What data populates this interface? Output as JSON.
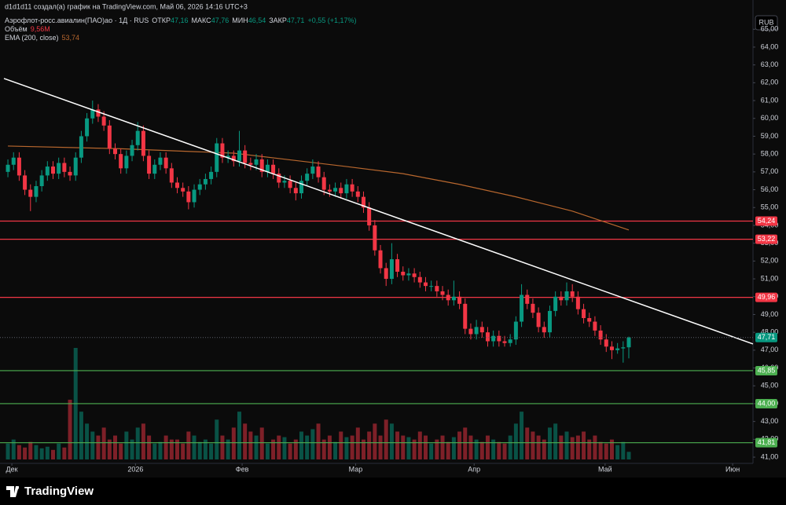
{
  "header": {
    "credit": "d1d1d11 создал(а) график на TradingView.com, Май 06, 2026 14:16 UTC+3",
    "symbol": "Аэрофлот-росс.авиалин(ПАО)ао · 1Д · RUS",
    "ohlc": [
      {
        "label": "ОТКР",
        "value": "47,16"
      },
      {
        "label": "МАКС",
        "value": "47,76"
      },
      {
        "label": "МИН",
        "value": "46,54"
      },
      {
        "label": "ЗАКР",
        "value": "47,71"
      }
    ],
    "change": "+0,55 (+1,17%)",
    "volume_label": "Объём",
    "volume_value": "9,56M",
    "ema_label": "EMA (200, close)",
    "ema_value": "53,74",
    "currency": "RUB",
    "brand": "TradingView"
  },
  "chart_data": {
    "type": "candlestick",
    "up_color": "#089981",
    "down_color": "#f23645",
    "xlim": [
      -1.4,
      132
    ],
    "ylim": [
      40.65,
      65.76
    ],
    "grid": false,
    "xticks": [
      {
        "value": 0.7,
        "label": "Дек"
      },
      {
        "value": 22.6,
        "label": "2026"
      },
      {
        "value": 41.5,
        "label": "Фев"
      },
      {
        "value": 61.6,
        "label": "Мар"
      },
      {
        "value": 82.6,
        "label": "Апр"
      },
      {
        "value": 105.8,
        "label": "Май"
      },
      {
        "value": 128.4,
        "label": "Июн"
      }
    ],
    "yticks": [
      {
        "value": 41,
        "label": "41,00"
      },
      {
        "value": 42,
        "label": "42,00"
      },
      {
        "value": 43,
        "label": "43,00"
      },
      {
        "value": 44,
        "label": "44,00"
      },
      {
        "value": 45,
        "label": "45,00"
      },
      {
        "value": 46,
        "label": "46,00"
      },
      {
        "value": 47,
        "label": "47,00"
      },
      {
        "value": 48,
        "label": "48,00"
      },
      {
        "value": 49,
        "label": "49,00"
      },
      {
        "value": 50,
        "label": "50,00"
      },
      {
        "value": 51,
        "label": "51,00"
      },
      {
        "value": 52,
        "label": "52,00"
      },
      {
        "value": 53,
        "label": "53,00"
      },
      {
        "value": 54,
        "label": "54,00"
      },
      {
        "value": 55,
        "label": "55,00"
      },
      {
        "value": 56,
        "label": "56,00"
      },
      {
        "value": 57,
        "label": "57,00"
      },
      {
        "value": 58,
        "label": "58,00"
      },
      {
        "value": 59,
        "label": "59,00"
      },
      {
        "value": 60,
        "label": "60,00"
      },
      {
        "value": 61,
        "label": "61,00"
      },
      {
        "value": 62,
        "label": "62,00"
      },
      {
        "value": 63,
        "label": "63,00"
      },
      {
        "value": 64,
        "label": "64,00"
      },
      {
        "value": 65,
        "label": "65,00"
      }
    ],
    "open": [
      57.0,
      57.4,
      57.8,
      56.8,
      56.0,
      55.6,
      56.2,
      56.8,
      57.3,
      56.9,
      57.5,
      57.0,
      56.8,
      57.8,
      59.0,
      60.0,
      60.5,
      60.1,
      59.6,
      58.3,
      58.0,
      57.2,
      57.9,
      58.5,
      59.3,
      57.9,
      56.9,
      57.4,
      57.8,
      57.2,
      56.4,
      56.1,
      55.9,
      55.3,
      56.0,
      56.3,
      56.6,
      57.0,
      58.6,
      57.8,
      57.9,
      57.6,
      58.2,
      57.5,
      57.4,
      57.7,
      57.0,
      57.4,
      56.9,
      56.4,
      56.5,
      56.1,
      55.8,
      56.5,
      56.9,
      57.3,
      56.7,
      56.0,
      55.9,
      56.1,
      55.8,
      56.3,
      55.9,
      55.6,
      55.0,
      54.0,
      52.6,
      51.6,
      51.0,
      52.1,
      51.4,
      51.2,
      51.3,
      51.1,
      50.8,
      50.6,
      50.6,
      50.3,
      50.1,
      49.8,
      50.0,
      49.6,
      48.2,
      47.9,
      48.3,
      48.0,
      47.5,
      47.8,
      47.5,
      47.4,
      47.6,
      48.6,
      50.1,
      49.6,
      49.1,
      48.3,
      48.0,
      49.2,
      50.0,
      49.8,
      50.3,
      50.0,
      49.3,
      48.8,
      48.6,
      48.1,
      47.6,
      47.2,
      47.0,
      47.1,
      47.16
    ],
    "high": [
      57.7,
      58.1,
      58.1,
      57.1,
      56.3,
      56.5,
      57.1,
      57.6,
      57.6,
      57.8,
      57.8,
      57.3,
      58.1,
      59.3,
      60.3,
      61.0,
      60.8,
      60.4,
      59.9,
      58.6,
      58.3,
      58.2,
      58.8,
      59.8,
      59.6,
      58.2,
      57.7,
      58.1,
      58.1,
      57.5,
      56.7,
      56.4,
      56.2,
      56.3,
      56.6,
      56.9,
      57.3,
      58.9,
      58.9,
      58.2,
      58.2,
      59.3,
      58.5,
      57.8,
      58.0,
      58.0,
      57.7,
      57.7,
      57.2,
      56.8,
      56.8,
      56.4,
      56.8,
      57.2,
      57.7,
      57.6,
      57.0,
      56.3,
      56.4,
      56.4,
      56.6,
      56.6,
      56.2,
      55.9,
      55.3,
      54.3,
      52.9,
      51.9,
      53.0,
      52.4,
      51.7,
      51.6,
      51.6,
      51.4,
      51.1,
      50.9,
      50.9,
      50.6,
      50.4,
      50.9,
      50.3,
      49.9,
      48.5,
      48.7,
      48.6,
      48.3,
      48.1,
      48.1,
      47.8,
      47.9,
      48.9,
      50.7,
      50.4,
      49.9,
      49.4,
      48.6,
      49.5,
      50.3,
      50.3,
      50.8,
      50.7,
      50.3,
      49.6,
      49.1,
      48.9,
      48.4,
      47.9,
      47.5,
      47.4,
      47.5,
      47.76
    ],
    "low": [
      56.7,
      57.1,
      56.5,
      55.7,
      54.8,
      55.3,
      55.9,
      56.5,
      56.6,
      56.6,
      56.7,
      56.5,
      56.5,
      57.5,
      58.7,
      59.7,
      59.8,
      59.3,
      58.0,
      57.7,
      56.9,
      56.9,
      57.6,
      58.2,
      57.6,
      56.6,
      56.6,
      57.1,
      56.9,
      56.1,
      55.8,
      55.6,
      54.9,
      55.0,
      55.7,
      56.0,
      56.3,
      56.7,
      57.5,
      57.5,
      57.3,
      57.3,
      57.2,
      57.1,
      57.1,
      56.7,
      56.7,
      56.6,
      56.1,
      56.1,
      55.8,
      55.4,
      55.5,
      56.2,
      56.6,
      56.4,
      55.7,
      55.6,
      55.6,
      55.5,
      55.5,
      55.6,
      55.3,
      54.7,
      53.7,
      52.3,
      51.3,
      50.6,
      50.7,
      51.1,
      50.9,
      50.9,
      50.8,
      50.5,
      50.3,
      50.3,
      50.0,
      49.8,
      49.5,
      49.5,
      49.3,
      47.9,
      47.6,
      47.6,
      47.7,
      47.2,
      47.2,
      47.2,
      47.2,
      47.2,
      47.3,
      48.3,
      49.3,
      48.8,
      48.0,
      47.7,
      47.7,
      48.9,
      49.5,
      49.5,
      49.7,
      49.0,
      48.5,
      48.3,
      47.8,
      47.3,
      46.9,
      46.5,
      46.8,
      46.3,
      46.54
    ],
    "close": [
      57.4,
      57.8,
      56.8,
      56.0,
      55.6,
      56.2,
      56.8,
      57.3,
      56.9,
      57.5,
      57.0,
      56.8,
      57.8,
      59.0,
      60.0,
      60.5,
      60.1,
      59.6,
      58.3,
      58.0,
      57.2,
      57.9,
      58.5,
      59.3,
      57.9,
      56.9,
      57.4,
      57.8,
      57.2,
      56.4,
      56.1,
      55.9,
      55.3,
      56.0,
      56.3,
      56.6,
      57.0,
      58.6,
      57.8,
      57.9,
      57.6,
      58.2,
      57.5,
      57.4,
      57.7,
      57.0,
      57.4,
      56.9,
      56.4,
      56.5,
      56.1,
      55.8,
      56.5,
      56.9,
      57.3,
      56.7,
      56.0,
      55.9,
      56.1,
      55.8,
      56.3,
      55.9,
      55.6,
      55.0,
      54.0,
      52.6,
      51.6,
      51.0,
      52.1,
      51.4,
      51.2,
      51.3,
      51.1,
      50.8,
      50.6,
      50.6,
      50.3,
      50.1,
      49.8,
      50.0,
      49.6,
      48.2,
      47.9,
      48.3,
      48.0,
      47.5,
      47.8,
      47.5,
      47.4,
      47.6,
      48.6,
      50.1,
      49.6,
      49.1,
      48.3,
      48.0,
      49.2,
      50.0,
      49.8,
      50.3,
      50.0,
      49.3,
      48.8,
      48.6,
      48.1,
      47.6,
      47.2,
      47.0,
      47.1,
      47.16,
      47.71
    ],
    "volume": [
      20,
      25,
      18,
      15,
      22,
      18,
      14,
      16,
      12,
      20,
      15,
      75,
      140,
      60,
      45,
      35,
      30,
      40,
      25,
      30,
      20,
      35,
      25,
      40,
      45,
      30,
      20,
      22,
      30,
      25,
      25,
      20,
      35,
      30,
      22,
      25,
      20,
      50,
      30,
      25,
      40,
      60,
      45,
      35,
      30,
      40,
      20,
      25,
      30,
      28,
      20,
      25,
      35,
      30,
      38,
      45,
      25,
      30,
      22,
      35,
      28,
      30,
      40,
      25,
      35,
      45,
      30,
      50,
      45,
      35,
      30,
      28,
      25,
      35,
      30,
      20,
      25,
      30,
      22,
      28,
      35,
      40,
      30,
      25,
      22,
      30,
      25,
      22,
      20,
      30,
      45,
      60,
      40,
      35,
      30,
      25,
      40,
      45,
      30,
      35,
      28,
      30,
      35,
      25,
      30,
      22,
      20,
      25,
      18,
      22,
      9.56
    ],
    "ema": {
      "name": "EMA (200, close)",
      "color": "#b8672e",
      "x": [
        0,
        20,
        40,
        60,
        70,
        80,
        90,
        100,
        110
      ],
      "values": [
        58.45,
        58.3,
        58.05,
        57.3,
        56.9,
        56.3,
        55.6,
        54.8,
        53.74
      ]
    },
    "trendline": {
      "color": "#ffffff",
      "x": [
        -0.7,
        132
      ],
      "values": [
        62.24,
        47.35
      ]
    },
    "levels": [
      {
        "value": 54.24,
        "label": "54,24",
        "color": "#f23645"
      },
      {
        "value": 53.22,
        "label": "53,22",
        "color": "#f23645"
      },
      {
        "value": 49.96,
        "label": "49,96",
        "color": "#f23645"
      },
      {
        "value": 45.85,
        "label": "45,85",
        "color": "#4caf50"
      },
      {
        "value": 44.0,
        "label": "44,00",
        "color": "#4caf50"
      },
      {
        "value": 41.81,
        "label": "41,81",
        "color": "#4caf50"
      }
    ],
    "last_price": {
      "value": 47.71,
      "label": "47,71",
      "color": "#089981"
    }
  }
}
